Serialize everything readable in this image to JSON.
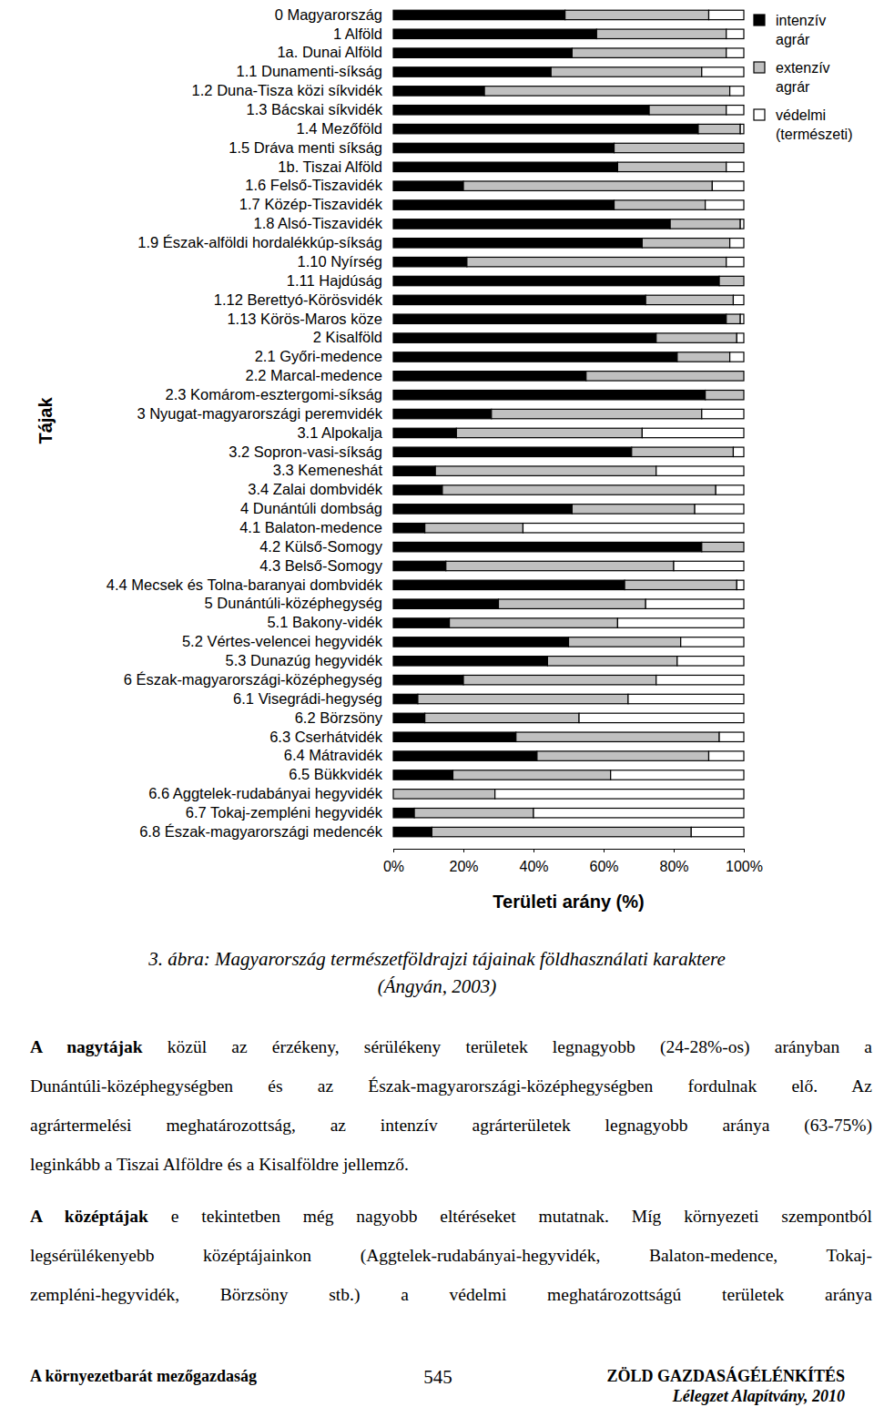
{
  "chart_data": {
    "type": "bar",
    "orientation": "horizontal",
    "stacked": true,
    "categories": [
      "0 Magyarország",
      "1 Alföld",
      "1a. Dunai Alföld",
      "1.1 Dunamenti-síkság",
      "1.2 Duna-Tisza közi síkvidék",
      "1.3 Bácskai síkvidék",
      "1.4 Mezőföld",
      "1.5 Dráva menti síkság",
      "1b. Tiszai Alföld",
      "1.6 Felső-Tiszavidék",
      "1.7 Közép-Tiszavidék",
      "1.8 Alsó-Tiszavidék",
      "1.9 Észak-alföldi hordalékkúp-síkság",
      "1.10 Nyírség",
      "1.11 Hajdúság",
      "1.12 Berettyó-Körösvidék",
      "1.13 Körös-Maros köze",
      "2 Kisalföld",
      "2.1 Győri-medence",
      "2.2 Marcal-medence",
      "2.3 Komárom-esztergomi-síkság",
      "3 Nyugat-magyarországi peremvidék",
      "3.1 Alpokalja",
      "3.2 Sopron-vasi-síkság",
      "3.3 Kemeneshát",
      "3.4 Zalai dombvidék",
      "4 Dunántúli dombság",
      "4.1 Balaton-medence",
      "4.2 Külső-Somogy",
      "4.3 Belső-Somogy",
      "4.4 Mecsek és Tolna-baranyai dombvidék",
      "5 Dunántúli-középhegység",
      "5.1 Bakony-vidék",
      "5.2 Vértes-velencei hegyvidék",
      "5.3 Dunazúg hegyvidék",
      "6 Észak-magyarországi-középhegység",
      "6.1 Visegrádi-hegység",
      "6.2 Börzsöny",
      "6.3 Cserhátvidék",
      "6.4 Mátravidék",
      "6.5 Bükkvidék",
      "6.6 Aggtelek-rudabányai hegyvidék",
      "6.7 Tokaj-zempléni hegyvidék",
      "6.8 Észak-magyarországi medencék"
    ],
    "series": [
      {
        "name": "intenzív agrár",
        "color": "#000000",
        "values": [
          49,
          58,
          51,
          45,
          26,
          73,
          87,
          63,
          64,
          20,
          63,
          79,
          71,
          21,
          93,
          72,
          95,
          75,
          81,
          55,
          89,
          28,
          18,
          68,
          12,
          14,
          51,
          9,
          88,
          15,
          66,
          30,
          16,
          50,
          44,
          20,
          7,
          9,
          35,
          41,
          17,
          0,
          6,
          11
        ]
      },
      {
        "name": "extenzív agrár",
        "color": "#c0c0c0",
        "values": [
          41,
          37,
          44,
          43,
          70,
          22,
          12,
          37,
          31,
          71,
          26,
          20,
          25,
          74,
          7,
          25,
          4,
          23,
          15,
          45,
          11,
          60,
          53,
          29,
          63,
          78,
          35,
          28,
          12,
          65,
          32,
          42,
          48,
          32,
          37,
          55,
          60,
          44,
          58,
          49,
          45,
          29,
          34,
          74
        ]
      },
      {
        "name": "védelmi (természeti)",
        "color": "#ffffff",
        "values": [
          10,
          5,
          5,
          12,
          4,
          5,
          1,
          0,
          5,
          9,
          11,
          1,
          4,
          5,
          0,
          3,
          1,
          2,
          4,
          0,
          0,
          12,
          29,
          3,
          25,
          8,
          14,
          63,
          0,
          20,
          2,
          28,
          36,
          18,
          19,
          25,
          33,
          47,
          7,
          10,
          38,
          71,
          60,
          15
        ]
      }
    ],
    "xlim": [
      0,
      100
    ],
    "xticks": [
      {
        "value": 0,
        "label": "0%"
      },
      {
        "value": 20,
        "label": "20%"
      },
      {
        "value": 40,
        "label": "40%"
      },
      {
        "value": 60,
        "label": "60%"
      },
      {
        "value": 80,
        "label": "80%"
      },
      {
        "value": 100,
        "label": "100%"
      }
    ],
    "x_label": "Területi arány (%)",
    "y_label": "Tájak",
    "legend": "right",
    "grid": false
  },
  "document": {
    "caption": [
      "3. ábra: Magyarország természetföldrajzi tájainak földhasználati karaktere",
      "(Ángyán, 2003)"
    ],
    "paragraphs": [
      {
        "lead": "A nagytájak",
        "lines": [
          " közül az érzékeny, sérülékeny területek legnagyobb (24-28%-os) arányban a",
          "Dunántúli-középhegységben és az Észak-magyarországi-középhegységben fordulnak elő. Az",
          "agrártermelési meghatározottság, az intenzív agrárterületek legnagyobb aránya (63-75%)",
          "leginkább a Tiszai Alföldre és a Kisalföldre jellemző."
        ]
      },
      {
        "lead": "A középtájak",
        "lines": [
          " e tekintetben még nagyobb eltéréseket mutatnak. Míg környezeti szempontból",
          "legsérülékenyebb középtájainkon (Aggtelek-rudabányai-hegyvidék, Balaton-medence, Tokaj-",
          "zempléni-hegyvidék, Börzsöny stb.) a védelmi meghatározottságú területek aránya"
        ]
      }
    ],
    "footer": {
      "left": "A környezetbarát mezőgazdaság",
      "page": 545,
      "right": "ZÖLD GAZDASÁGÉLÉNKÍTÉS",
      "right_sub": "Lélegzet Alapítvány, 2010"
    }
  }
}
